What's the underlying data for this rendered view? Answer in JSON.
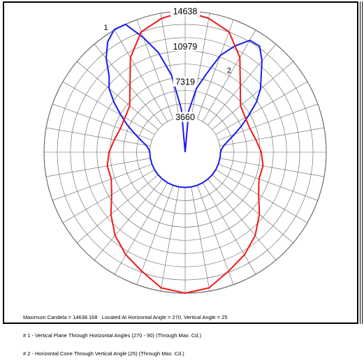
{
  "chart_data": {
    "type": "polar",
    "rings": [
      {
        "value": 3660,
        "label": "3660"
      },
      {
        "value": 7319,
        "label": "7319"
      },
      {
        "value": 10979,
        "label": "10979"
      },
      {
        "value": 14638,
        "label": "14638"
      }
    ],
    "max_value": 14638,
    "angular_grid_step_deg": 10,
    "radial_subdivisions": 8,
    "center_hole_value": 3660,
    "grid": true,
    "colors": {
      "grid": "#606060",
      "series_1": "#1a1aee",
      "series_2": "#ee1a1a"
    },
    "series": [
      {
        "name": "1",
        "label": "1",
        "color": "#1a1aee",
        "points_deg_value": [
          [
            0,
            0
          ],
          [
            -5,
            4450
          ],
          [
            -10,
            8100
          ],
          [
            -15,
            10700
          ],
          [
            -20,
            12650
          ],
          [
            -25,
            14638
          ],
          [
            -30,
            14700
          ],
          [
            -35,
            14000
          ],
          [
            -40,
            12750
          ],
          [
            -45,
            11150
          ],
          [
            -50,
            10300
          ],
          [
            -55,
            9000
          ],
          [
            -60,
            7700
          ],
          [
            -65,
            6600
          ],
          [
            -70,
            5550
          ],
          [
            -75,
            4750
          ],
          [
            -80,
            4100
          ],
          [
            -85,
            3800
          ],
          [
            -90,
            3660
          ],
          [
            -95,
            3660
          ],
          [
            -100,
            3660
          ],
          [
            -110,
            3660
          ],
          [
            -120,
            3660
          ],
          [
            -130,
            3660
          ],
          [
            -140,
            3660
          ],
          [
            -150,
            3660
          ],
          [
            -160,
            3660
          ],
          [
            -170,
            3660
          ],
          [
            180,
            3660
          ],
          [
            170,
            3660
          ],
          [
            160,
            3660
          ],
          [
            150,
            3660
          ],
          [
            140,
            3660
          ],
          [
            130,
            3660
          ],
          [
            120,
            3660
          ],
          [
            110,
            3660
          ],
          [
            100,
            3660
          ],
          [
            95,
            3660
          ],
          [
            90,
            3660
          ],
          [
            85,
            3800
          ],
          [
            80,
            4100
          ],
          [
            75,
            4650
          ],
          [
            70,
            5450
          ],
          [
            65,
            6450
          ],
          [
            60,
            7600
          ],
          [
            55,
            9000
          ],
          [
            50,
            10200
          ],
          [
            45,
            11150
          ],
          [
            40,
            12400
          ],
          [
            35,
            13450
          ],
          [
            30,
            13400
          ],
          [
            25,
            12150
          ],
          [
            20,
            10700
          ],
          [
            15,
            8350
          ],
          [
            10,
            6700
          ],
          [
            5,
            4300
          ],
          [
            0,
            0
          ]
        ]
      },
      {
        "name": "2",
        "label": "2",
        "color": "#ee1a1a",
        "points_deg_value": [
          [
            0,
            14638
          ],
          [
            10,
            14100
          ],
          [
            20,
            13300
          ],
          [
            30,
            11350
          ],
          [
            40,
            8900
          ],
          [
            50,
            7500
          ],
          [
            60,
            7200
          ],
          [
            70,
            7150
          ],
          [
            80,
            7450
          ],
          [
            90,
            7900
          ],
          [
            100,
            8200
          ],
          [
            110,
            8150
          ],
          [
            120,
            8800
          ],
          [
            130,
            10050
          ],
          [
            140,
            11300
          ],
          [
            150,
            12300
          ],
          [
            160,
            13150
          ],
          [
            170,
            14300
          ],
          [
            180,
            14638
          ],
          [
            190,
            14300
          ],
          [
            200,
            13150
          ],
          [
            210,
            12300
          ],
          [
            220,
            11300
          ],
          [
            230,
            10050
          ],
          [
            240,
            8800
          ],
          [
            250,
            8150
          ],
          [
            260,
            8200
          ],
          [
            270,
            7900
          ],
          [
            280,
            7450
          ],
          [
            290,
            7150
          ],
          [
            300,
            7200
          ],
          [
            310,
            7500
          ],
          [
            320,
            8900
          ],
          [
            330,
            11350
          ],
          [
            340,
            13300
          ],
          [
            350,
            14100
          ],
          [
            360,
            14638
          ]
        ]
      }
    ],
    "footer": [
      "Maximum Candela = 14638.168   Located At Horizontal Angle = 270, Vertical Angle = 25",
      "# 1 - Vertical Plane Through Horizontal Angles (270 - 90) (Through Max. Cd.)",
      "# 2 - Horizontal Cone Through Vertical Angle (25) (Through Max. Cd.)"
    ]
  }
}
